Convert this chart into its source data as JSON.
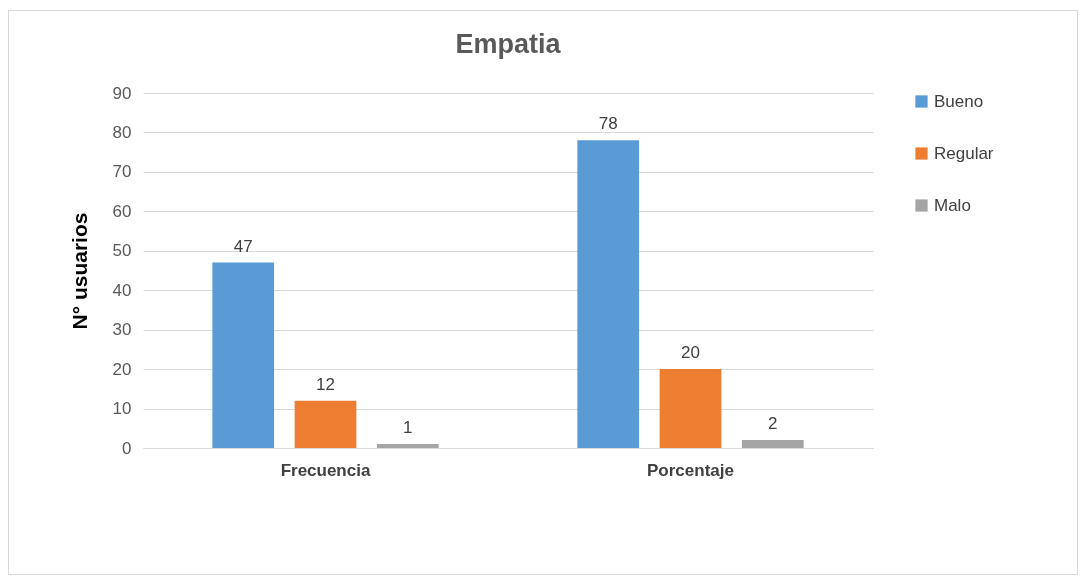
{
  "chart_data": {
    "type": "bar",
    "title": "Empatia",
    "ylabel": "N° usuarios",
    "categories": [
      "Frecuencia",
      "Porcentaje"
    ],
    "series": [
      {
        "name": "Bueno",
        "color": "#5b9bd5",
        "values": [
          47,
          78
        ]
      },
      {
        "name": "Regular",
        "color": "#ed7d31",
        "values": [
          12,
          20
        ]
      },
      {
        "name": "Malo",
        "color": "#a5a5a5",
        "values": [
          1,
          2
        ]
      }
    ],
    "ylim": [
      0,
      90
    ],
    "yticks": [
      0,
      10,
      20,
      30,
      40,
      50,
      60,
      70,
      80,
      90
    ],
    "grid": "y",
    "legend": "right",
    "data_labels": true
  }
}
